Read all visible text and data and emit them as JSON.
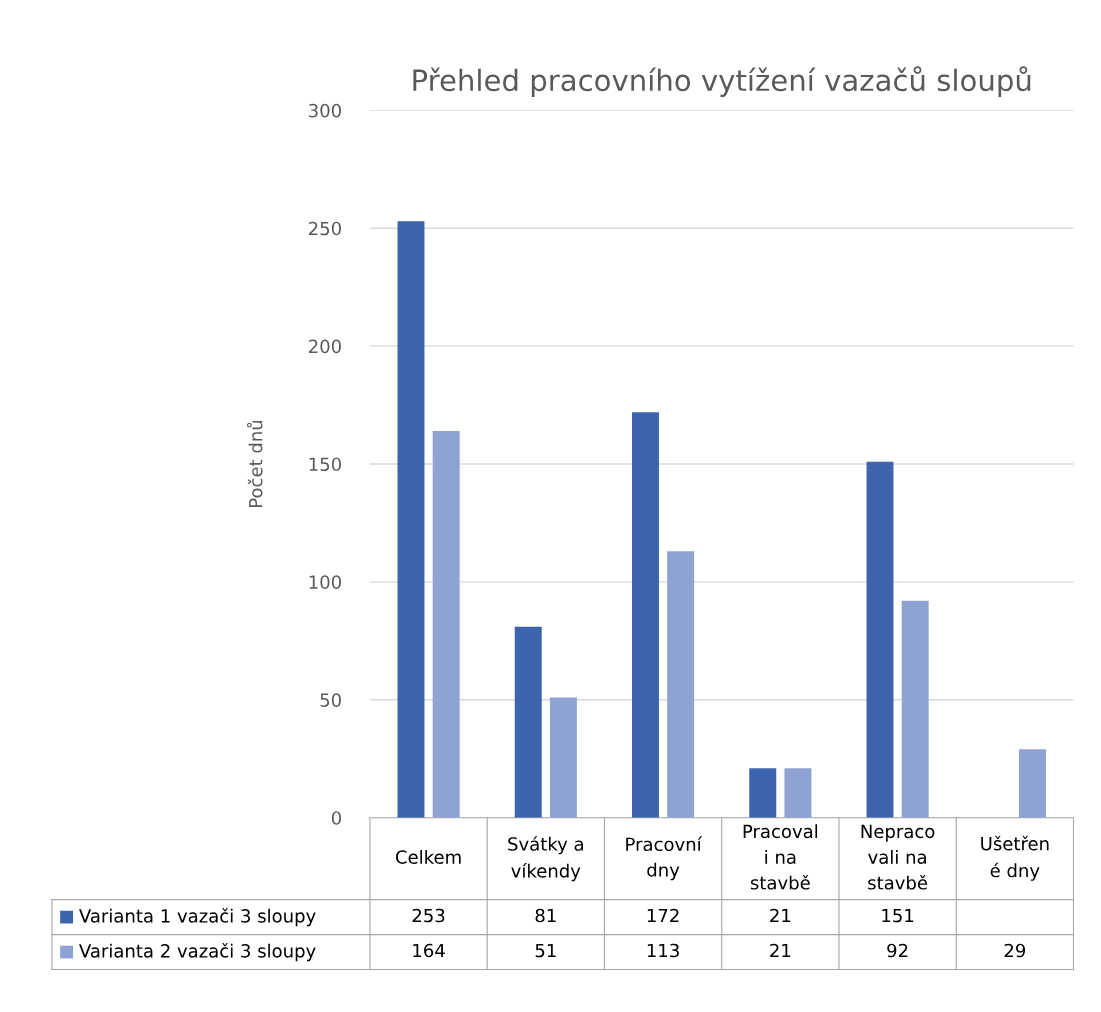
{
  "chart_data": {
    "type": "bar",
    "title": "Přehled pracovního vytížení vazačů sloupů",
    "ylabel": "Počet dnů",
    "categories": [
      "Celkem",
      "Svátky a\nvíkendy",
      "Pracovní\ndny",
      "Pracoval\ni na\nstavbě",
      "Nepraco\nvali na\nstavbě",
      "Ušetřen\né dny"
    ],
    "series": [
      {
        "name": "Varianta 1 vazači 3 sloupy",
        "color": "#3d65ad",
        "values": [
          253,
          81,
          172,
          21,
          151,
          null
        ]
      },
      {
        "name": "Varianta 2 vazači 3 sloupy",
        "color": "#8fa2d4",
        "values": [
          164,
          51,
          113,
          21,
          92,
          29
        ]
      }
    ],
    "ylim": [
      0,
      300
    ],
    "yticks": [
      0,
      50,
      100,
      150,
      200,
      250,
      300
    ],
    "grid": "y",
    "data_labels": true,
    "legend": "bottom left"
  }
}
